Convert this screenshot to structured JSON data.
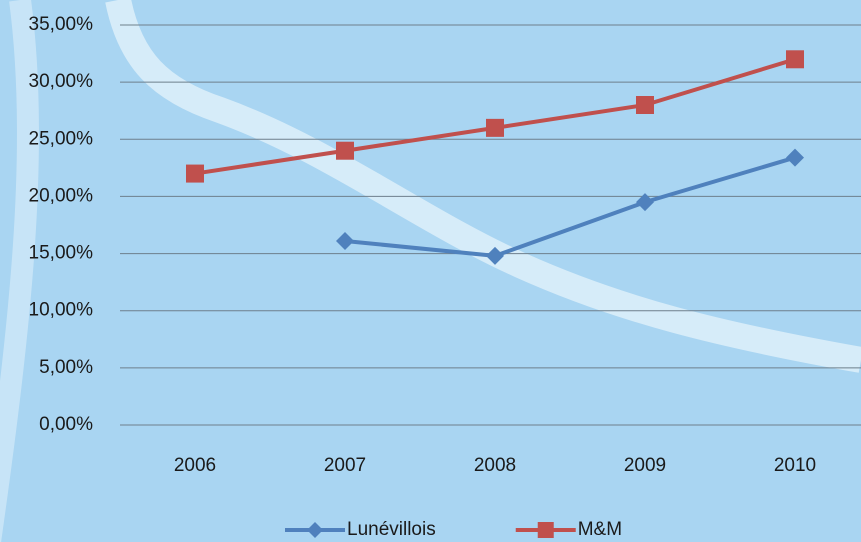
{
  "chart_data": {
    "type": "line",
    "categories": [
      "2006",
      "2007",
      "2008",
      "2009",
      "2010"
    ],
    "series": [
      {
        "name": "Lunévillois",
        "color": "#4f81bd",
        "marker": "diamond",
        "values": [
          null,
          16.1,
          14.8,
          19.5,
          23.4
        ]
      },
      {
        "name": "M&M",
        "color": "#c0504d",
        "marker": "square",
        "values": [
          22,
          24,
          26,
          28,
          32
        ]
      }
    ],
    "ylim": [
      0,
      35
    ],
    "yticks": [
      {
        "value": 0,
        "label": "0,00%"
      },
      {
        "value": 5,
        "label": "5,00%"
      },
      {
        "value": 10,
        "label": "10,00%"
      },
      {
        "value": 15,
        "label": "15,00%"
      },
      {
        "value": 20,
        "label": "20,00%"
      },
      {
        "value": 25,
        "label": "25,00%"
      },
      {
        "value": 30,
        "label": "30,00%"
      },
      {
        "value": 35,
        "label": "35,00%"
      }
    ],
    "grid": true,
    "legend": "bottom"
  }
}
